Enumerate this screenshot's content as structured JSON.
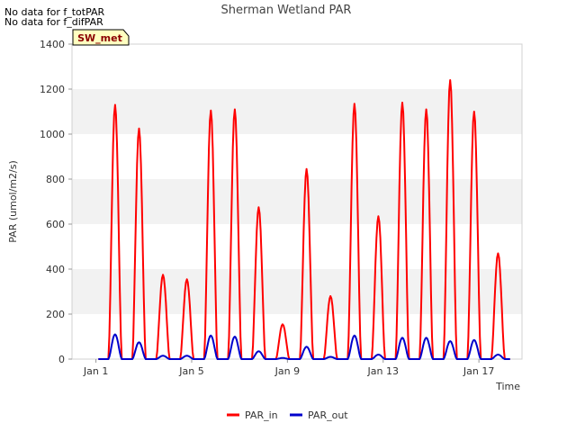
{
  "notes": [
    "No data for f_totPAR",
    "No data for f_difPAR"
  ],
  "chart_data": {
    "type": "line",
    "title": "Sherman Wetland PAR",
    "xlabel": "Time",
    "ylabel": "PAR (umol/m2/s)",
    "badge": "SW_met",
    "ylim": [
      0,
      1400
    ],
    "xlim": [
      0.0,
      18.8
    ],
    "y_ticks": [
      0,
      200,
      400,
      600,
      800,
      1000,
      1200,
      1400
    ],
    "x_ticks": [
      {
        "day": 1,
        "label": "Jan 1"
      },
      {
        "day": 5,
        "label": "Jan 5"
      },
      {
        "day": 9,
        "label": "Jan 9"
      },
      {
        "day": 13,
        "label": "Jan 13"
      },
      {
        "day": 17,
        "label": "Jan 17"
      }
    ],
    "grid": "horizontal alternating bands",
    "legend_position": "bottom-center",
    "series": [
      {
        "name": "PAR_in",
        "color": "#ff0000",
        "daily_peaks": [
          {
            "day": 1.8,
            "peak": 1130
          },
          {
            "day": 2.8,
            "peak": 1025
          },
          {
            "day": 3.8,
            "peak": 375
          },
          {
            "day": 4.8,
            "peak": 355
          },
          {
            "day": 5.8,
            "peak": 1105
          },
          {
            "day": 6.8,
            "peak": 1110
          },
          {
            "day": 7.8,
            "peak": 675
          },
          {
            "day": 8.8,
            "peak": 155
          },
          {
            "day": 9.8,
            "peak": 845
          },
          {
            "day": 10.8,
            "peak": 280
          },
          {
            "day": 11.8,
            "peak": 1135
          },
          {
            "day": 12.8,
            "peak": 635
          },
          {
            "day": 13.8,
            "peak": 1140
          },
          {
            "day": 14.8,
            "peak": 1110
          },
          {
            "day": 15.8,
            "peak": 1240
          },
          {
            "day": 16.8,
            "peak": 1100
          },
          {
            "day": 17.8,
            "peak": 470
          }
        ]
      },
      {
        "name": "PAR_out",
        "color": "#0000cc",
        "daily_peaks": [
          {
            "day": 1.8,
            "peak": 110
          },
          {
            "day": 2.8,
            "peak": 75
          },
          {
            "day": 3.8,
            "peak": 15
          },
          {
            "day": 4.8,
            "peak": 15
          },
          {
            "day": 5.8,
            "peak": 105
          },
          {
            "day": 6.8,
            "peak": 100
          },
          {
            "day": 7.8,
            "peak": 35
          },
          {
            "day": 8.8,
            "peak": 5
          },
          {
            "day": 9.8,
            "peak": 55
          },
          {
            "day": 10.8,
            "peak": 10
          },
          {
            "day": 11.8,
            "peak": 105
          },
          {
            "day": 12.8,
            "peak": 20
          },
          {
            "day": 13.8,
            "peak": 95
          },
          {
            "day": 14.8,
            "peak": 95
          },
          {
            "day": 15.8,
            "peak": 80
          },
          {
            "day": 16.8,
            "peak": 85
          },
          {
            "day": 17.8,
            "peak": 20
          }
        ]
      }
    ]
  }
}
